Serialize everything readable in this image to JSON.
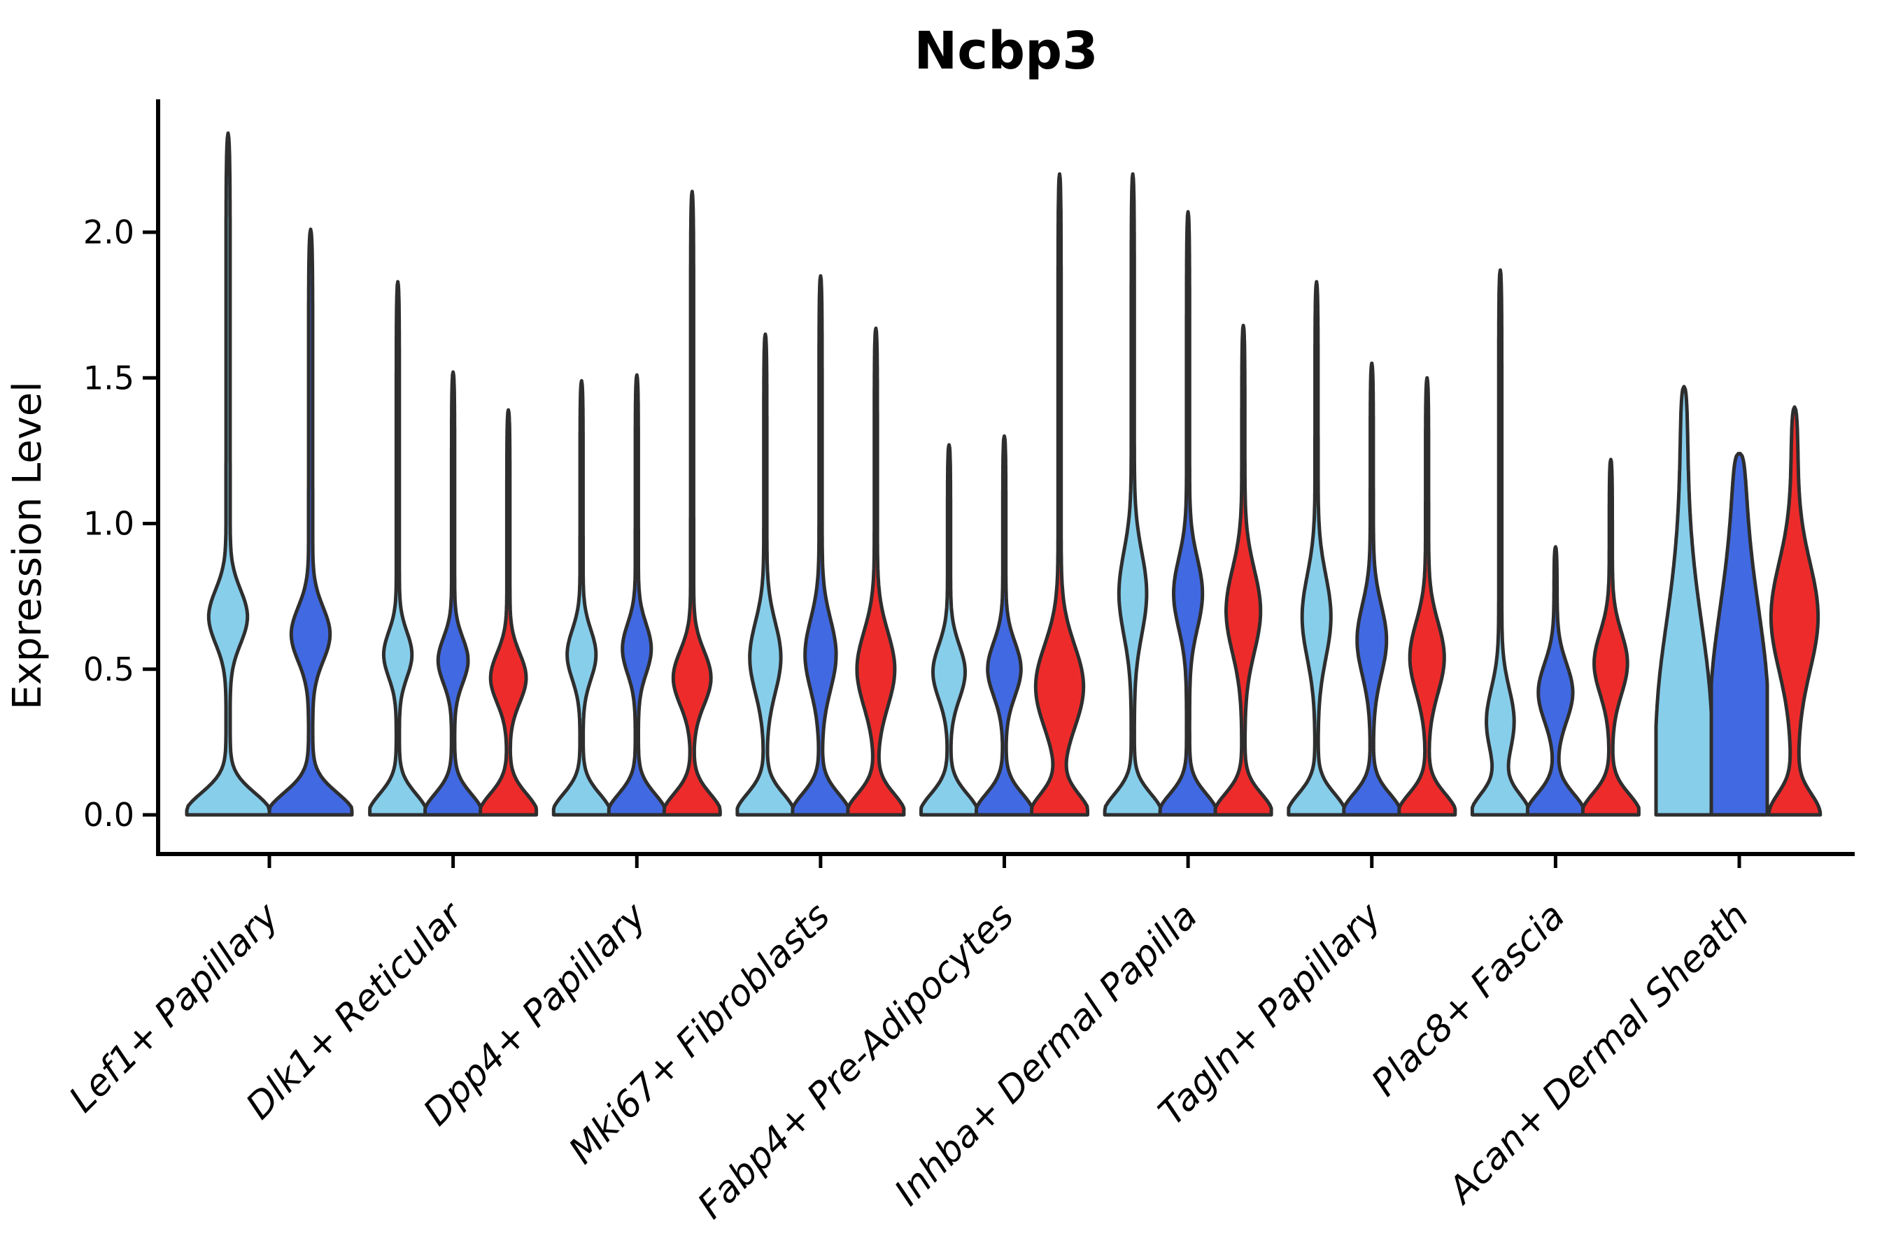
{
  "title": "Ncbp3",
  "chart_data": {
    "type": "violin",
    "title": "Ncbp3",
    "ylabel": "Expression Level",
    "yticks": [
      0.0,
      0.5,
      1.0,
      1.5,
      2.0
    ],
    "ytick_labels": [
      "0.0",
      "0.5",
      "1.0",
      "1.5",
      "2.0"
    ],
    "ylim": [
      0,
      2.46
    ],
    "grid": false,
    "legend": "none",
    "palette": {
      "skyblue": "#87CEEB",
      "royalblue": "#4169E1",
      "red": "#EE2B2B"
    },
    "edge_color": "#2e2e2e",
    "categories": [
      "Lef1+ Papillary",
      "Dlk1+ Reticular",
      "Dpp4+ Papillary",
      "Mki67+ Fibroblasts",
      "Fabp4+ Pre-Adipocytes",
      "Inhba+ Dermal Papilla",
      "Tagln+ Papillary",
      "Plac8+ Fascia",
      "Acan+ Dermal Sheath"
    ],
    "groups": [
      {
        "category": "Lef1+ Papillary",
        "violins": [
          {
            "series": "skyblue",
            "color": "#87CEEB",
            "max": 2.34,
            "bulge_center": 0.68,
            "bulge_sigma": 0.13,
            "bulge_amp": 0.42,
            "base_amp": 1.0,
            "base_sigma": 0.105,
            "stem_amp": 0.05
          },
          {
            "series": "royalblue",
            "color": "#4169E1",
            "max": 2.01,
            "bulge_center": 0.62,
            "bulge_sigma": 0.13,
            "bulge_amp": 0.42,
            "base_amp": 1.0,
            "base_sigma": 0.105,
            "stem_amp": 0.05
          }
        ]
      },
      {
        "category": "Dlk1+ Reticular",
        "violins": [
          {
            "series": "skyblue",
            "color": "#87CEEB",
            "max": 1.83,
            "bulge_center": 0.55,
            "bulge_sigma": 0.11,
            "bulge_amp": 0.45,
            "base_amp": 1.0,
            "base_sigma": 0.1,
            "stem_amp": 0.055
          },
          {
            "series": "royalblue",
            "color": "#4169E1",
            "max": 1.52,
            "bulge_center": 0.53,
            "bulge_sigma": 0.11,
            "bulge_amp": 0.48,
            "base_amp": 1.0,
            "base_sigma": 0.1,
            "stem_amp": 0.055
          },
          {
            "series": "red",
            "color": "#EE2B2B",
            "max": 1.39,
            "bulge_center": 0.47,
            "bulge_sigma": 0.12,
            "bulge_amp": 0.58,
            "base_amp": 1.0,
            "base_sigma": 0.1,
            "stem_amp": 0.055
          }
        ]
      },
      {
        "category": "Dpp4+ Papillary",
        "violins": [
          {
            "series": "skyblue",
            "color": "#87CEEB",
            "max": 1.49,
            "bulge_center": 0.55,
            "bulge_sigma": 0.12,
            "bulge_amp": 0.46,
            "base_amp": 1.0,
            "base_sigma": 0.1,
            "stem_amp": 0.055
          },
          {
            "series": "royalblue",
            "color": "#4169E1",
            "max": 1.51,
            "bulge_center": 0.57,
            "bulge_sigma": 0.12,
            "bulge_amp": 0.46,
            "base_amp": 1.0,
            "base_sigma": 0.1,
            "stem_amp": 0.055
          },
          {
            "series": "red",
            "color": "#EE2B2B",
            "max": 2.14,
            "bulge_center": 0.47,
            "bulge_sigma": 0.13,
            "bulge_amp": 0.62,
            "base_amp": 1.0,
            "base_sigma": 0.1,
            "stem_amp": 0.055
          }
        ]
      },
      {
        "category": "Mki67+ Fibroblasts",
        "violins": [
          {
            "series": "skyblue",
            "color": "#87CEEB",
            "max": 1.65,
            "bulge_center": 0.54,
            "bulge_sigma": 0.17,
            "bulge_amp": 0.5,
            "base_amp": 1.0,
            "base_sigma": 0.1,
            "stem_amp": 0.055
          },
          {
            "series": "royalblue",
            "color": "#4169E1",
            "max": 1.85,
            "bulge_center": 0.55,
            "bulge_sigma": 0.17,
            "bulge_amp": 0.5,
            "base_amp": 1.0,
            "base_sigma": 0.1,
            "stem_amp": 0.055
          },
          {
            "series": "red",
            "color": "#EE2B2B",
            "max": 1.67,
            "bulge_center": 0.5,
            "bulge_sigma": 0.18,
            "bulge_amp": 0.62,
            "base_amp": 1.0,
            "base_sigma": 0.1,
            "stem_amp": 0.055
          }
        ]
      },
      {
        "category": "Fabp4+ Pre-Adipocytes",
        "violins": [
          {
            "series": "skyblue",
            "color": "#87CEEB",
            "max": 1.27,
            "bulge_center": 0.49,
            "bulge_sigma": 0.13,
            "bulge_amp": 0.52,
            "base_amp": 1.0,
            "base_sigma": 0.1,
            "stem_amp": 0.055
          },
          {
            "series": "royalblue",
            "color": "#4169E1",
            "max": 1.3,
            "bulge_center": 0.5,
            "bulge_sigma": 0.13,
            "bulge_amp": 0.54,
            "base_amp": 1.0,
            "base_sigma": 0.1,
            "stem_amp": 0.055
          },
          {
            "series": "red",
            "color": "#EE2B2B",
            "max": 2.2,
            "bulge_center": 0.44,
            "bulge_sigma": 0.2,
            "bulge_amp": 0.8,
            "base_amp": 1.0,
            "base_sigma": 0.1,
            "stem_amp": 0.055
          }
        ]
      },
      {
        "category": "Inhba+ Dermal Papilla",
        "violins": [
          {
            "series": "skyblue",
            "color": "#87CEEB",
            "max": 2.2,
            "bulge_center": 0.76,
            "bulge_sigma": 0.2,
            "bulge_amp": 0.44,
            "base_amp": 1.0,
            "base_sigma": 0.1,
            "stem_amp": 0.055
          },
          {
            "series": "royalblue",
            "color": "#4169E1",
            "max": 2.07,
            "bulge_center": 0.76,
            "bulge_sigma": 0.17,
            "bulge_amp": 0.46,
            "base_amp": 1.0,
            "base_sigma": 0.1,
            "stem_amp": 0.055
          },
          {
            "series": "red",
            "color": "#EE2B2B",
            "max": 1.68,
            "bulge_center": 0.7,
            "bulge_sigma": 0.2,
            "bulge_amp": 0.56,
            "base_amp": 1.0,
            "base_sigma": 0.1,
            "stem_amp": 0.055
          }
        ]
      },
      {
        "category": "Tagln+ Papillary",
        "violins": [
          {
            "series": "skyblue",
            "color": "#87CEEB",
            "max": 1.83,
            "bulge_center": 0.68,
            "bulge_sigma": 0.2,
            "bulge_amp": 0.46,
            "base_amp": 1.0,
            "base_sigma": 0.1,
            "stem_amp": 0.055
          },
          {
            "series": "royalblue",
            "color": "#4169E1",
            "max": 1.55,
            "bulge_center": 0.6,
            "bulge_sigma": 0.17,
            "bulge_amp": 0.47,
            "base_amp": 1.0,
            "base_sigma": 0.1,
            "stem_amp": 0.055
          },
          {
            "series": "red",
            "color": "#EE2B2B",
            "max": 1.5,
            "bulge_center": 0.54,
            "bulge_sigma": 0.17,
            "bulge_amp": 0.56,
            "base_amp": 1.0,
            "base_sigma": 0.1,
            "stem_amp": 0.055
          }
        ]
      },
      {
        "category": "Plac8+ Fascia",
        "violins": [
          {
            "series": "skyblue",
            "color": "#87CEEB",
            "max": 1.87,
            "bulge_center": 0.32,
            "bulge_sigma": 0.16,
            "bulge_amp": 0.44,
            "base_amp": 1.0,
            "base_sigma": 0.1,
            "stem_amp": 0.055
          },
          {
            "series": "royalblue",
            "color": "#4169E1",
            "max": 0.92,
            "bulge_center": 0.42,
            "bulge_sigma": 0.14,
            "bulge_amp": 0.56,
            "base_amp": 1.0,
            "base_sigma": 0.1,
            "stem_amp": 0.055
          },
          {
            "series": "red",
            "color": "#EE2B2B",
            "max": 1.22,
            "bulge_center": 0.52,
            "bulge_sigma": 0.15,
            "bulge_amp": 0.54,
            "base_amp": 1.0,
            "base_sigma": 0.1,
            "stem_amp": 0.055
          }
        ]
      },
      {
        "category": "Acan+ Dermal Sheath",
        "violins": [
          {
            "series": "skyblue",
            "color": "#87CEEB",
            "max": 1.47,
            "bulge_center": 0.3,
            "bulge_sigma": 0.5,
            "bulge_amp": 0.85,
            "base_amp": 0.3,
            "base_sigma": 0.2,
            "stem_amp": 0.12
          },
          {
            "series": "royalblue",
            "color": "#4169E1",
            "max": 1.24,
            "bulge_center": 0.35,
            "bulge_sigma": 0.5,
            "bulge_amp": 0.85,
            "base_amp": 0.3,
            "base_sigma": 0.2,
            "stem_amp": 0.18
          },
          {
            "series": "red",
            "color": "#EE2B2B",
            "max": 1.4,
            "bulge_center": 0.68,
            "bulge_sigma": 0.26,
            "bulge_amp": 0.72,
            "base_amp": 0.8,
            "base_sigma": 0.1,
            "stem_amp": 0.12
          }
        ]
      }
    ]
  }
}
